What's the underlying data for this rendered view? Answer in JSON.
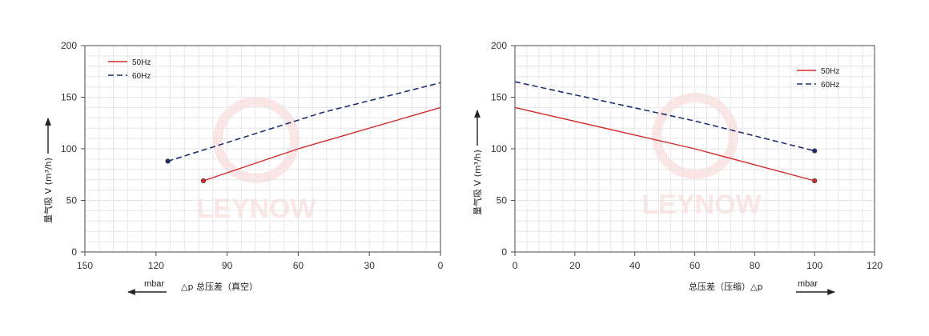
{
  "colors": {
    "hz50": "#d42a2a",
    "hz60": "#1f2f6e",
    "grid": "#e6e6e6",
    "frame": "#4a4a4a"
  },
  "watermark": "LEYNOW",
  "chart_data": [
    {
      "type": "line",
      "xlabel": "△p 总压差（真空）",
      "x_unit": "mbar",
      "ylabel": "量气吸 V (m³/h)",
      "xlim": [
        150,
        0
      ],
      "ylim": [
        0,
        200
      ],
      "x_reversed": true,
      "x_ticks": [
        "150",
        "120",
        "90",
        "60",
        "30",
        "0"
      ],
      "y_ticks": [
        "0",
        "50",
        "100",
        "150",
        "200"
      ],
      "grid": true,
      "legend_position": "top-left",
      "series": [
        {
          "name": "50Hz",
          "style": "solid",
          "x": [
            100,
            60,
            0
          ],
          "y": [
            69,
            100,
            140
          ]
        },
        {
          "name": "60Hz",
          "style": "dashed",
          "x": [
            115,
            50,
            0
          ],
          "y": [
            88,
            135,
            164
          ]
        }
      ]
    },
    {
      "type": "line",
      "xlabel": "总压差（压缩）△p",
      "x_unit": "mbar",
      "ylabel": "量气吸 V (m³/h)",
      "xlim": [
        0,
        120
      ],
      "ylim": [
        0,
        200
      ],
      "x_reversed": false,
      "x_ticks": [
        "0",
        "20",
        "40",
        "60",
        "80",
        "100",
        "120"
      ],
      "y_ticks": [
        "0",
        "50",
        "100",
        "150",
        "200"
      ],
      "grid": true,
      "legend_position": "top-right",
      "series": [
        {
          "name": "50Hz",
          "style": "solid",
          "x": [
            0,
            60,
            100
          ],
          "y": [
            140,
            100,
            69
          ]
        },
        {
          "name": "60Hz",
          "style": "dashed",
          "x": [
            0,
            60,
            100
          ],
          "y": [
            165,
            127,
            98
          ]
        }
      ]
    }
  ]
}
